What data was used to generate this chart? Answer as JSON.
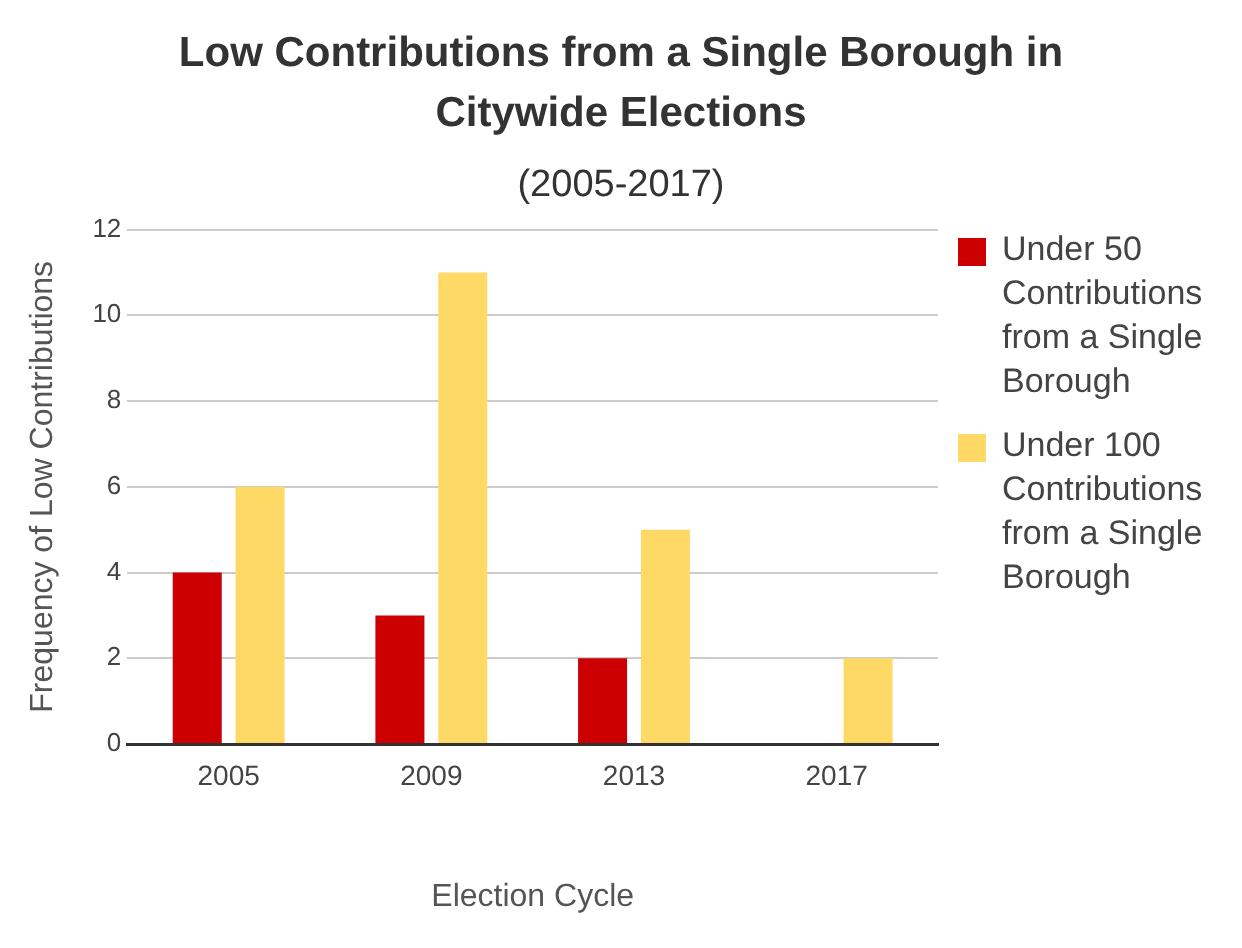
{
  "chart_data": {
    "type": "bar",
    "title": "Low Contributions from a Single Borough in Citywide Elections",
    "subtitle": "(2005-2017)",
    "xlabel": "Election Cycle",
    "ylabel": "Frequency of Low Contributions",
    "categories": [
      "2005",
      "2009",
      "2013",
      "2017"
    ],
    "series": [
      {
        "name": "Under 50 Contributions from a Single Borough",
        "color": "#cc0000",
        "values": [
          4,
          3,
          2,
          0
        ]
      },
      {
        "name": "Under 100 Contributions from a Single Borough",
        "color": "#ffd966",
        "values": [
          6,
          11,
          5,
          2
        ]
      }
    ],
    "ylim": [
      0,
      12
    ],
    "yticks": [
      0,
      2,
      4,
      6,
      8,
      10,
      12
    ],
    "grid": "y",
    "legend": "right"
  }
}
